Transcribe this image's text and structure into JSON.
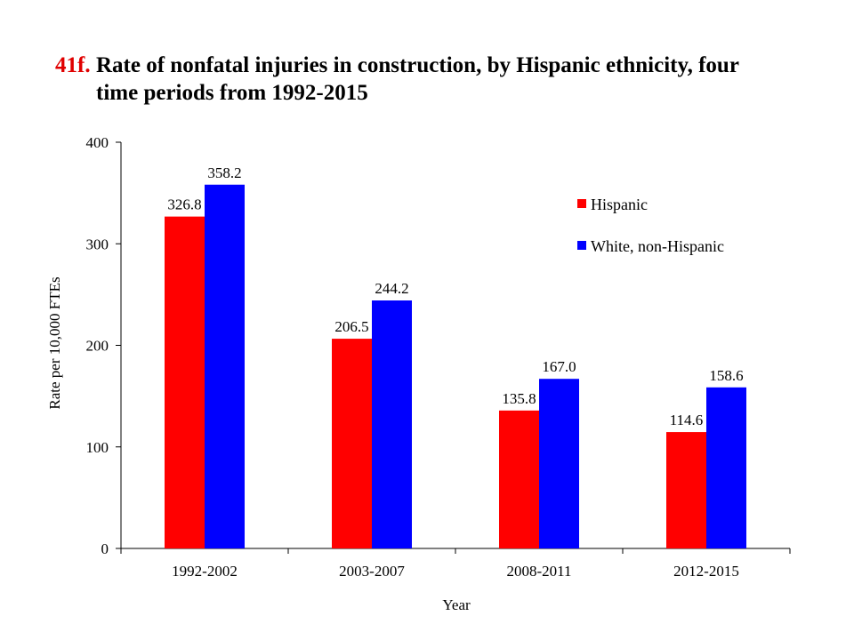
{
  "title": {
    "number": "41f.",
    "line1": "Rate of nonfatal injuries in construction, by Hispanic ethnicity, four",
    "line2": "time periods from 1992-2015"
  },
  "chart_data": {
    "type": "bar",
    "categories": [
      "1992-2002",
      "2003-2007",
      "2008-2011",
      "2012-2015"
    ],
    "series": [
      {
        "name": "Hispanic",
        "color": "#ff0000",
        "values": [
          326.8,
          206.5,
          135.8,
          114.6
        ],
        "labels": [
          "326.8",
          "206.5",
          "135.8",
          "114.6"
        ]
      },
      {
        "name": "White, non-Hispanic",
        "color": "#0000ff",
        "values": [
          358.2,
          244.2,
          167.0,
          158.6
        ],
        "labels": [
          "358.2",
          "244.2",
          "167.0",
          "158.6"
        ]
      }
    ],
    "xlabel": "Year",
    "ylabel": "Rate per 10,000 FTEs",
    "ylim": [
      0,
      400
    ],
    "yticks": [
      0,
      100,
      200,
      300,
      400
    ],
    "grid": false,
    "legend_position": "top-right"
  }
}
